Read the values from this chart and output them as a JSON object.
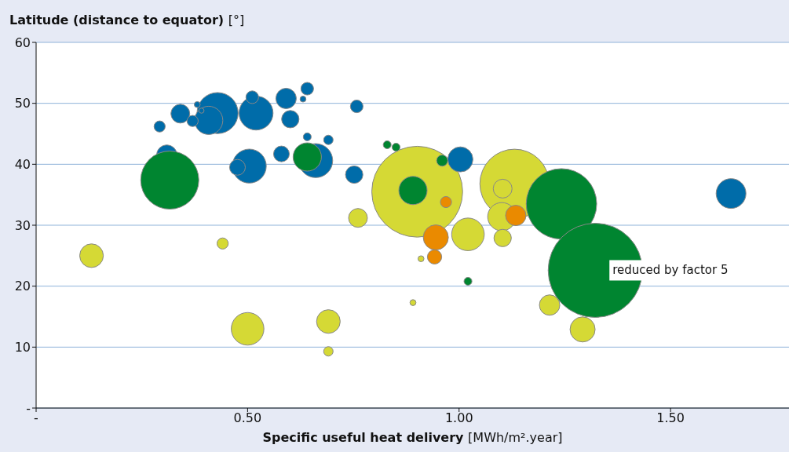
{
  "chart_data": {
    "type": "bubble",
    "xlabel": "Specific useful heat delivery [MWh/m².year]",
    "ylabel": "Latitude (distance to equator) [°]",
    "xlim": [
      0,
      1.78
    ],
    "xticks": [
      {
        "value": 0,
        "label": "-"
      },
      {
        "value": 0.5,
        "label": "0.50"
      },
      {
        "value": 1,
        "label": "1.00"
      },
      {
        "value": 1.5,
        "label": "1.50"
      }
    ],
    "ylim": [
      0,
      60
    ],
    "yticks": [
      {
        "value": 0,
        "label": "-"
      },
      10,
      20,
      30,
      40,
      50,
      60
    ],
    "grid": "y",
    "series": [
      {
        "color": "#d5d935",
        "x": [
          0.901,
          1.131,
          1.021,
          0.5,
          1.101,
          1.292,
          0.131,
          0.691,
          1.214,
          0.761,
          1.103,
          1.103,
          0.441,
          0.691,
          0.891,
          0.91
        ],
        "values": [
          35.5,
          36.8,
          28.5,
          13.0,
          31.4,
          12.9,
          25.0,
          14.2,
          16.9,
          31.2,
          36.0,
          27.9,
          27.0,
          9.3,
          17.3,
          24.5
        ],
        "sizes": [
          0.93,
          0.54,
          0.12,
          0.12,
          0.09,
          0.071,
          0.063,
          0.063,
          0.047,
          0.04,
          0.04,
          0.034,
          0.014,
          0.01,
          0.004,
          0.004
        ]
      },
      {
        "color": "#006ca9",
        "x": [
          0.429,
          0.52,
          0.504,
          0.661,
          1.643,
          0.408,
          1.003,
          0.591,
          0.309,
          0.341,
          0.601,
          0.752,
          0.476,
          0.58,
          0.511,
          0.641,
          0.758,
          0.292,
          0.37,
          0.691,
          0.641,
          0.631,
          0.381,
          0.391
        ],
        "values": [
          48.4,
          48.4,
          39.7,
          40.6,
          35.2,
          47.2,
          40.8,
          50.8,
          41.5,
          48.3,
          47.4,
          38.3,
          39.5,
          41.7,
          51.0,
          52.4,
          49.5,
          46.2,
          47.1,
          44.0,
          44.5,
          50.7,
          49.8,
          48.8
        ],
        "sizes": [
          0.19,
          0.13,
          0.13,
          0.13,
          0.1,
          0.09,
          0.071,
          0.047,
          0.047,
          0.04,
          0.034,
          0.034,
          0.028,
          0.028,
          0.018,
          0.018,
          0.018,
          0.014,
          0.014,
          0.01,
          0.007,
          0.004,
          0.004,
          0.003
        ]
      },
      {
        "color": "#008530",
        "x": [
          1.242,
          0.316,
          0.891,
          0.641,
          0.96,
          0.83,
          0.851,
          1.021
        ],
        "values": [
          33.5,
          37.4,
          35.7,
          41.2,
          40.6,
          43.2,
          42.8,
          20.8
        ],
        "sizes": [
          0.56,
          0.38,
          0.09,
          0.09,
          0.014,
          0.007,
          0.007,
          0.007
        ]
      },
      {
        "color": "#ea8a00",
        "x": [
          0.945,
          1.134,
          0.942,
          0.969
        ],
        "values": [
          28.0,
          31.6,
          24.8,
          33.8
        ],
        "sizes": [
          0.071,
          0.047,
          0.023,
          0.014
        ]
      },
      {
        "color": "#008530",
        "x": [
          1.322
        ],
        "values": [
          22.6
        ],
        "sizes": [
          1
        ]
      }
    ],
    "annotations": [
      {
        "text": "reduced by factor 5",
        "x": 1.322,
        "y": 22.6
      }
    ]
  }
}
